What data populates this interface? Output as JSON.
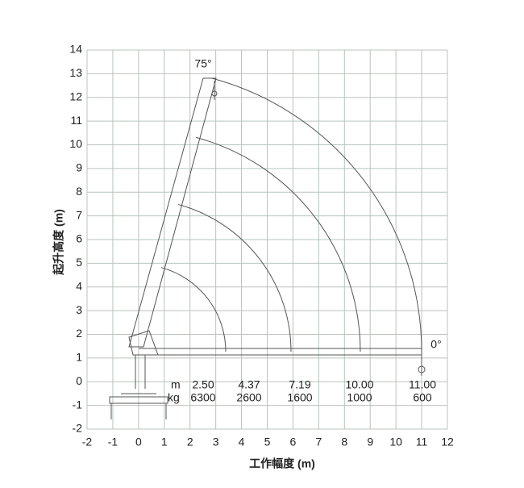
{
  "chart_data": {
    "type": "crane-load",
    "x_label": "工作幅度 (m)",
    "y_label": "起升高度 (m)",
    "xlim": [
      -2,
      12
    ],
    "ylim": [
      -2,
      14
    ],
    "xticks": [
      -2,
      -1,
      0,
      1,
      2,
      3,
      4,
      5,
      6,
      7,
      8,
      9,
      10,
      11,
      12
    ],
    "yticks": [
      -2,
      -1,
      0,
      1,
      2,
      3,
      4,
      5,
      6,
      7,
      8,
      9,
      10,
      11,
      12,
      13,
      14
    ],
    "grid": true,
    "radius_unit": "m",
    "load_unit": "kg",
    "radii": {
      "values": [
        2.5,
        4.37,
        7.19,
        10,
        11
      ],
      "value_labels": [
        "2.50",
        "4.37",
        "7.19",
        "10.00",
        "11.00"
      ]
    },
    "loads": [
      6300,
      2600,
      1600,
      1000,
      600
    ],
    "angle_labels": [
      "75°",
      "0°"
    ]
  }
}
